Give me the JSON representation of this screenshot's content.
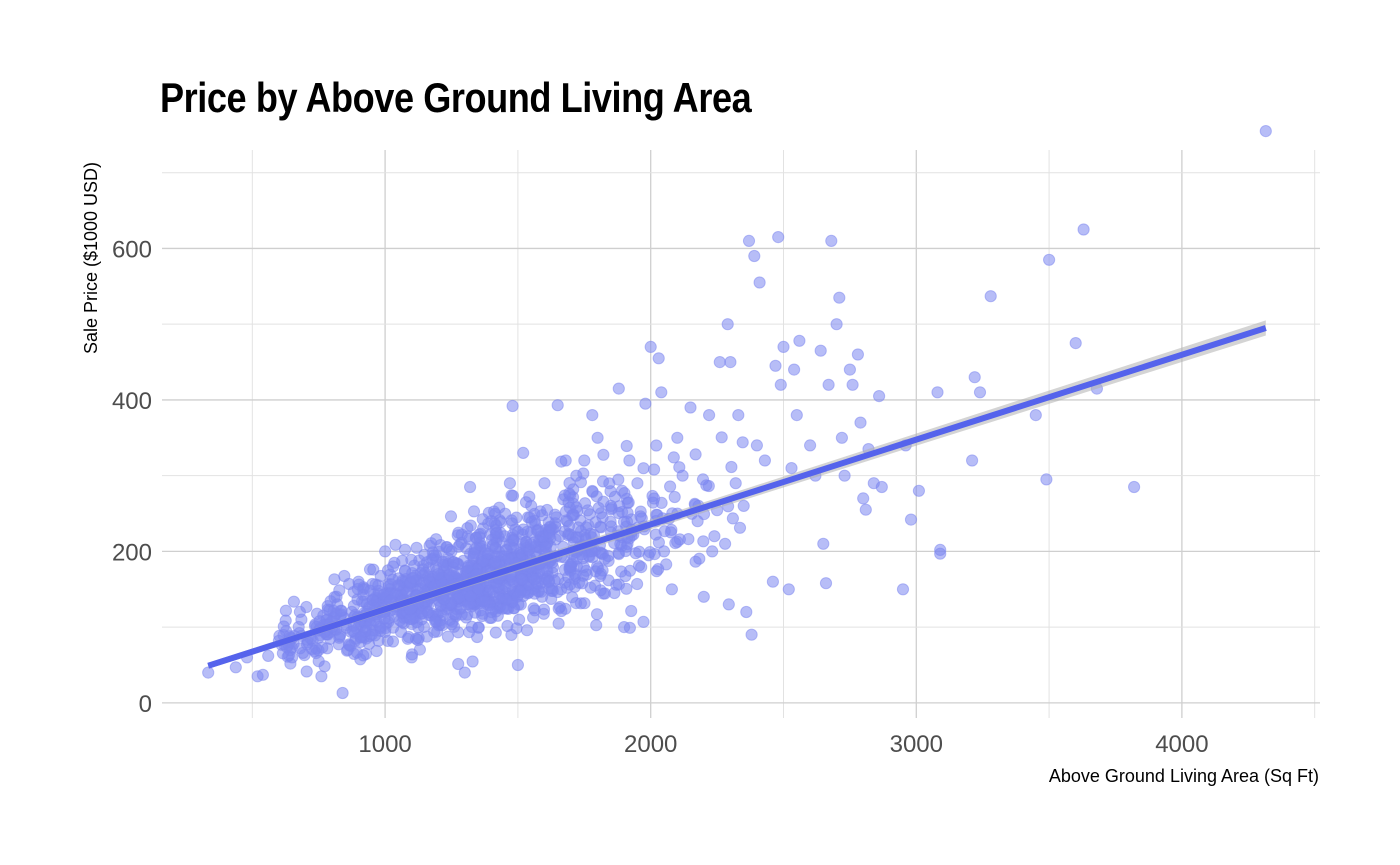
{
  "chart_data": {
    "type": "scatter",
    "title": "Price by Above Ground Living Area",
    "xlabel": "Above Ground Living Area (Sq Ft)",
    "ylabel": "Sale Price ($1000 USD)",
    "xlim": [
      160,
      4520
    ],
    "ylim": [
      -20,
      730
    ],
    "x_ticks": [
      1000,
      2000,
      3000,
      4000
    ],
    "y_ticks": [
      0,
      200,
      400,
      600
    ],
    "grid": true,
    "legend": "none",
    "point_color": "#7b86f0",
    "line_color": "#5563ec",
    "band_color": "#b0b0b0",
    "trend_line": {
      "x": [
        334,
        4316
      ],
      "y": [
        49,
        495
      ],
      "ci_halfwidth": [
        4,
        10
      ]
    },
    "points": [
      [
        334,
        40
      ],
      [
        438,
        47
      ],
      [
        480,
        60
      ],
      [
        520,
        35
      ],
      [
        540,
        37
      ],
      [
        560,
        62
      ],
      [
        600,
        82
      ],
      [
        640,
        88
      ],
      [
        650,
        60
      ],
      [
        680,
        72
      ],
      [
        720,
        85
      ],
      [
        750,
        55
      ],
      [
        760,
        35
      ],
      [
        800,
        100
      ],
      [
        820,
        130
      ],
      [
        840,
        13
      ],
      [
        860,
        70
      ],
      [
        900,
        160
      ],
      [
        950,
        90
      ],
      [
        1000,
        200
      ],
      [
        1030,
        180
      ],
      [
        1100,
        60
      ],
      [
        1150,
        140
      ],
      [
        1200,
        170
      ],
      [
        1250,
        200
      ],
      [
        1300,
        40
      ],
      [
        1320,
        285
      ],
      [
        1350,
        150
      ],
      [
        1400,
        120
      ],
      [
        1400,
        240
      ],
      [
        1450,
        220
      ],
      [
        1470,
        290
      ],
      [
        1480,
        392
      ],
      [
        1500,
        50
      ],
      [
        1520,
        330
      ],
      [
        1550,
        260
      ],
      [
        1600,
        290
      ],
      [
        1650,
        393
      ],
      [
        1680,
        320
      ],
      [
        1700,
        180
      ],
      [
        1720,
        300
      ],
      [
        1750,
        320
      ],
      [
        1780,
        380
      ],
      [
        1800,
        350
      ],
      [
        1850,
        260
      ],
      [
        1880,
        415
      ],
      [
        1900,
        100
      ],
      [
        1920,
        320
      ],
      [
        1950,
        290
      ],
      [
        1980,
        395
      ],
      [
        2000,
        470
      ],
      [
        2020,
        240
      ],
      [
        2030,
        455
      ],
      [
        2040,
        410
      ],
      [
        2050,
        200
      ],
      [
        2080,
        150
      ],
      [
        2100,
        350
      ],
      [
        2120,
        300
      ],
      [
        2150,
        390
      ],
      [
        2180,
        260
      ],
      [
        2200,
        140
      ],
      [
        2220,
        380
      ],
      [
        2240,
        220
      ],
      [
        2260,
        450
      ],
      [
        2280,
        210
      ],
      [
        2290,
        500
      ],
      [
        2300,
        450
      ],
      [
        2320,
        290
      ],
      [
        2330,
        380
      ],
      [
        2350,
        260
      ],
      [
        2360,
        120
      ],
      [
        2370,
        610
      ],
      [
        2380,
        90
      ],
      [
        2390,
        590
      ],
      [
        2400,
        340
      ],
      [
        2410,
        555
      ],
      [
        2430,
        320
      ],
      [
        2460,
        160
      ],
      [
        2470,
        445
      ],
      [
        2480,
        615
      ],
      [
        2490,
        420
      ],
      [
        2500,
        470
      ],
      [
        2520,
        150
      ],
      [
        2530,
        310
      ],
      [
        2540,
        440
      ],
      [
        2550,
        380
      ],
      [
        2560,
        478
      ],
      [
        2600,
        340
      ],
      [
        2620,
        300
      ],
      [
        2640,
        465
      ],
      [
        2650,
        210
      ],
      [
        2660,
        158
      ],
      [
        2670,
        420
      ],
      [
        2680,
        610
      ],
      [
        2700,
        500
      ],
      [
        2710,
        535
      ],
      [
        2720,
        350
      ],
      [
        2730,
        300
      ],
      [
        2750,
        440
      ],
      [
        2760,
        420
      ],
      [
        2780,
        460
      ],
      [
        2790,
        370
      ],
      [
        2800,
        270
      ],
      [
        2810,
        255
      ],
      [
        2820,
        335
      ],
      [
        2840,
        290
      ],
      [
        2860,
        405
      ],
      [
        2870,
        285
      ],
      [
        2950,
        150
      ],
      [
        2960,
        340
      ],
      [
        2980,
        242
      ],
      [
        3010,
        280
      ],
      [
        3080,
        410
      ],
      [
        3090,
        197
      ],
      [
        3090,
        202
      ],
      [
        3210,
        320
      ],
      [
        3220,
        430
      ],
      [
        3240,
        410
      ],
      [
        3280,
        537
      ],
      [
        3450,
        380
      ],
      [
        3490,
        295
      ],
      [
        3500,
        585
      ],
      [
        3600,
        475
      ],
      [
        3630,
        625
      ],
      [
        3680,
        415
      ],
      [
        3820,
        285
      ],
      [
        4316,
        755
      ]
    ]
  }
}
